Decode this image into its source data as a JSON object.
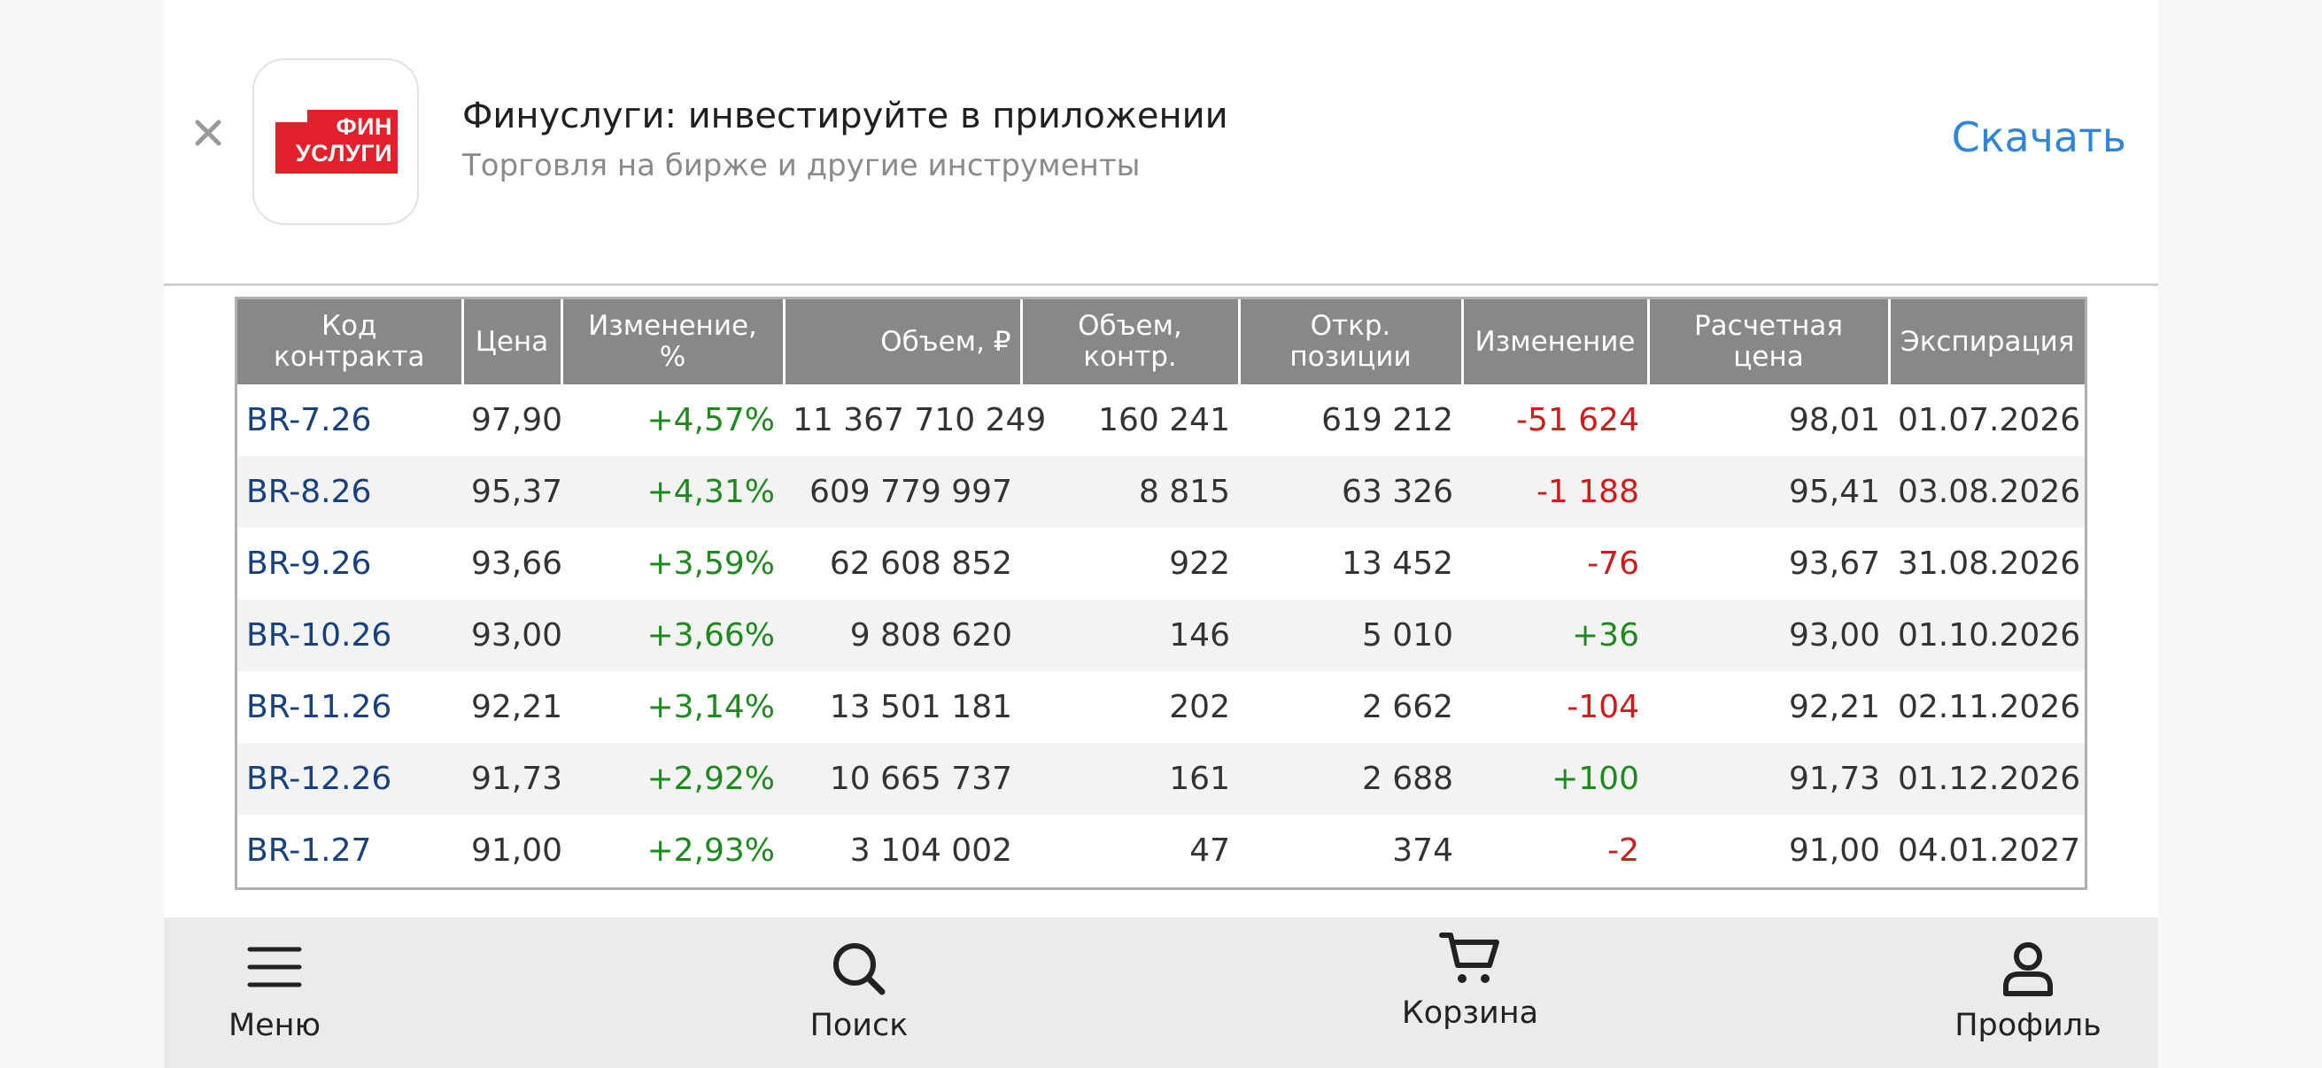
{
  "banner": {
    "close_icon": "close-icon",
    "logo_line1": "ФИН",
    "logo_line2": "УСЛУГИ",
    "title": "Финуслуги: инвестируйте в приложении",
    "subtitle": "Торговля на бирже и другие инструменты",
    "download_label": "Скачать",
    "accent_color": "#2f86d9",
    "logo_color": "#e3202b"
  },
  "table": {
    "headers": [
      "Код контракта",
      "Цена",
      "Изменение, %",
      "Объем, ₽",
      "Объем, контр.",
      "Откр. позиции",
      "Изменение",
      "Расчетная цена",
      "Экспирация"
    ],
    "rows": [
      {
        "code": "BR-7.26",
        "price": "97,90",
        "change_pct": "+4,57%",
        "volume_rub": "11 367 710 249",
        "volume_contracts": "160 241",
        "open_positions": "619 212",
        "change": "-51 624",
        "settlement": "98,01",
        "expiration": "01.07.2026"
      },
      {
        "code": "BR-8.26",
        "price": "95,37",
        "change_pct": "+4,31%",
        "volume_rub": "609 779 997",
        "volume_contracts": "8 815",
        "open_positions": "63 326",
        "change": "-1 188",
        "settlement": "95,41",
        "expiration": "03.08.2026"
      },
      {
        "code": "BR-9.26",
        "price": "93,66",
        "change_pct": "+3,59%",
        "volume_rub": "62 608 852",
        "volume_contracts": "922",
        "open_positions": "13 452",
        "change": "-76",
        "settlement": "93,67",
        "expiration": "31.08.2026"
      },
      {
        "code": "BR-10.26",
        "price": "93,00",
        "change_pct": "+3,66%",
        "volume_rub": "9 808 620",
        "volume_contracts": "146",
        "open_positions": "5 010",
        "change": "+36",
        "settlement": "93,00",
        "expiration": "01.10.2026"
      },
      {
        "code": "BR-11.26",
        "price": "92,21",
        "change_pct": "+3,14%",
        "volume_rub": "13 501 181",
        "volume_contracts": "202",
        "open_positions": "2 662",
        "change": "-104",
        "settlement": "92,21",
        "expiration": "02.11.2026"
      },
      {
        "code": "BR-12.26",
        "price": "91,73",
        "change_pct": "+2,92%",
        "volume_rub": "10 665 737",
        "volume_contracts": "161",
        "open_positions": "2 688",
        "change": "+100",
        "settlement": "91,73",
        "expiration": "01.12.2026"
      },
      {
        "code": "BR-1.27",
        "price": "91,00",
        "change_pct": "+2,93%",
        "volume_rub": "3 104 002",
        "volume_contracts": "47",
        "open_positions": "374",
        "change": "-2",
        "settlement": "91,00",
        "expiration": "04.01.2027"
      }
    ],
    "colors": {
      "positive": "#1e8a1e",
      "negative": "#d11a1a",
      "link": "#17407e",
      "header_bg": "#888888"
    }
  },
  "bottom_nav": {
    "items": [
      {
        "label": "Меню",
        "icon": "menu-icon"
      },
      {
        "label": "Поиск",
        "icon": "search-icon"
      },
      {
        "label": "Корзина",
        "icon": "cart-icon"
      },
      {
        "label": "Профиль",
        "icon": "profile-icon"
      }
    ]
  }
}
